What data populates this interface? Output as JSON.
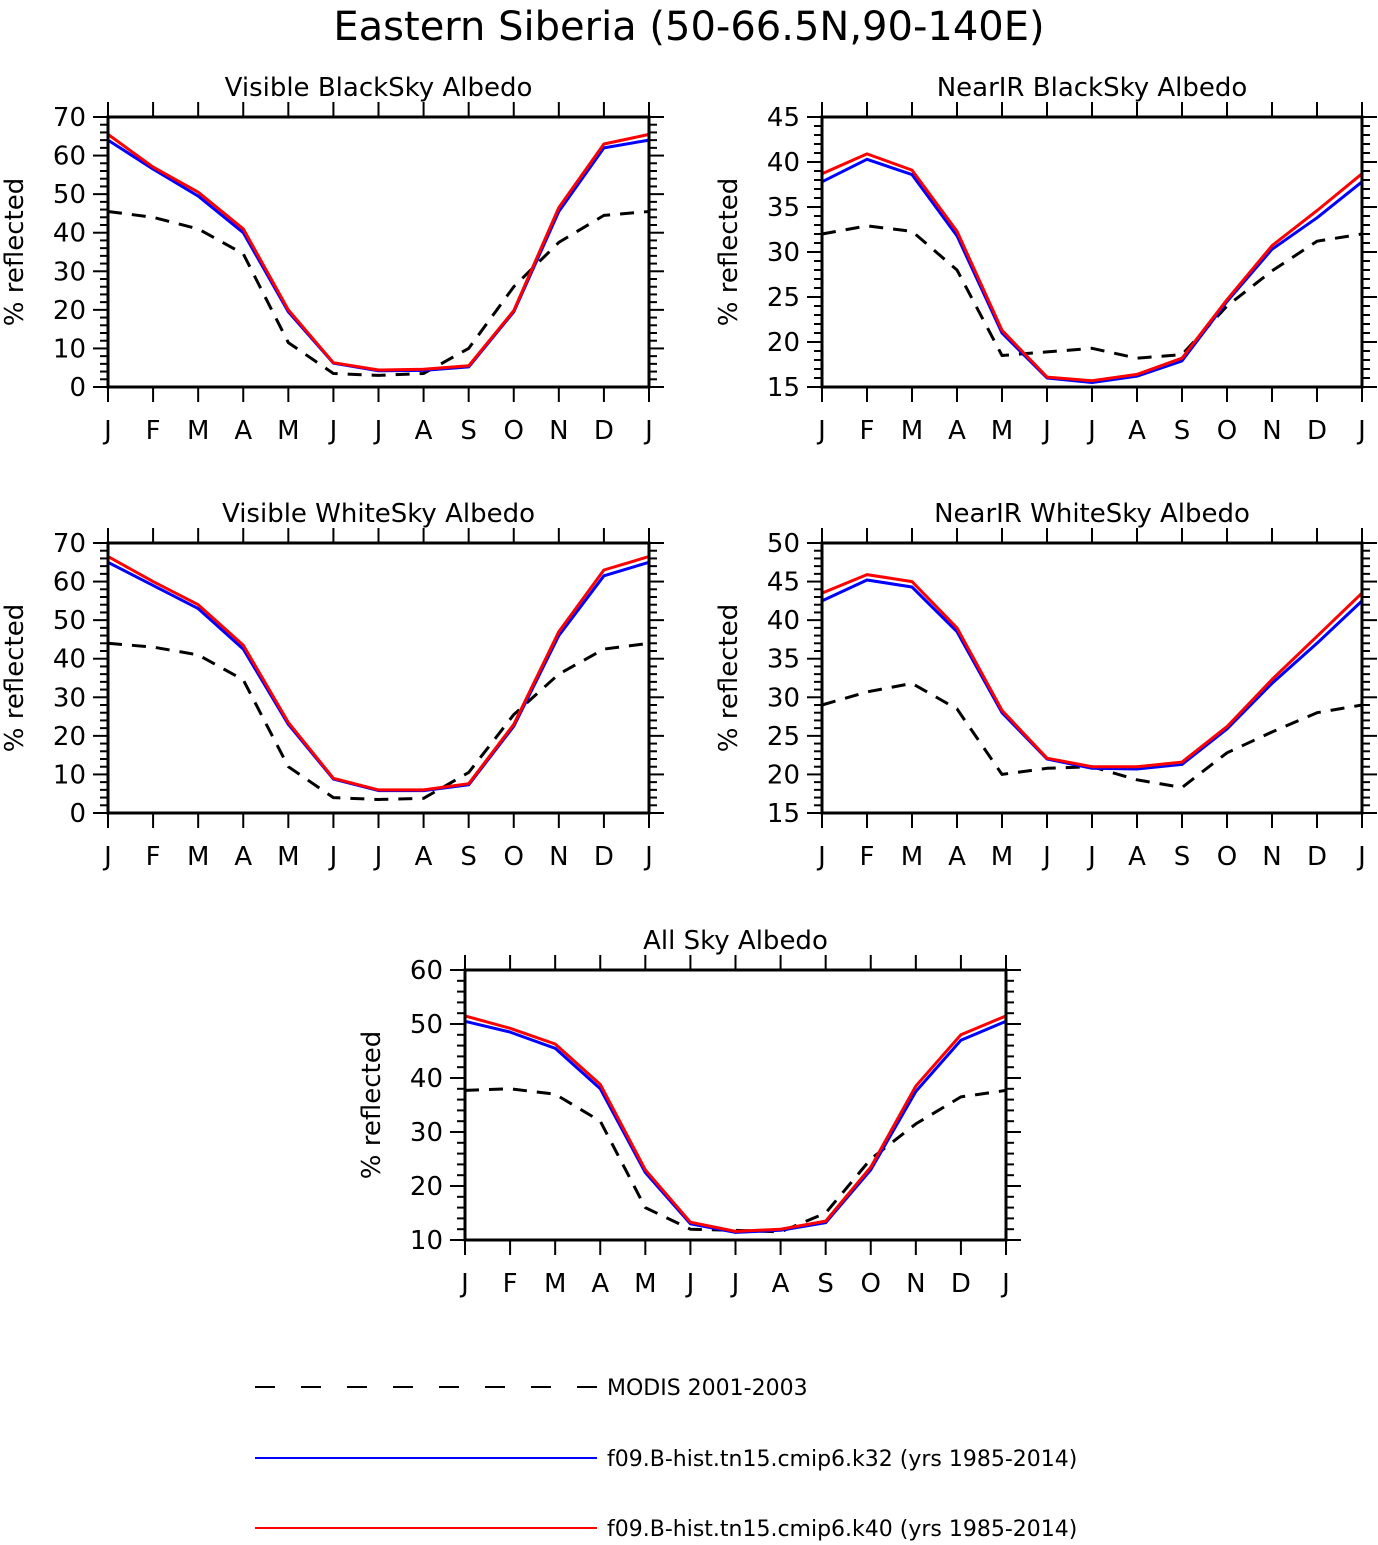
{
  "title": "Eastern Siberia (50-66.5N,90-140E)",
  "colors": {
    "modis": "#000000",
    "k32": "#0000ff",
    "k40": "#ff0000"
  },
  "legend": [
    {
      "key": "modis",
      "label": "MODIS 2001-2003",
      "style": "dashed"
    },
    {
      "key": "k32",
      "label": "f09.B-hist.tn15.cmip6.k32 (yrs 1985-2014)",
      "style": "solid"
    },
    {
      "key": "k40",
      "label": "f09.B-hist.tn15.cmip6.k40 (yrs 1985-2014)",
      "style": "solid"
    }
  ],
  "chart_data": [
    {
      "type": "line",
      "title": "Visible BlackSky Albedo",
      "ylabel": "% reflected",
      "categories": [
        "J",
        "F",
        "M",
        "A",
        "M",
        "J",
        "J",
        "A",
        "S",
        "O",
        "N",
        "D",
        "J"
      ],
      "ylim": [
        0,
        70
      ],
      "yticks": [
        0,
        10,
        20,
        30,
        40,
        50,
        60,
        70
      ],
      "series": [
        {
          "key": "modis",
          "values": [
            45.5,
            44,
            41,
            34.5,
            11.5,
            3.5,
            3,
            3.5,
            10,
            26,
            37.5,
            44.5,
            45.5
          ]
        },
        {
          "key": "k32",
          "values": [
            64,
            56.5,
            49.5,
            40,
            19.5,
            6.2,
            4.2,
            4.3,
            5.2,
            19.5,
            45.5,
            62,
            64
          ]
        },
        {
          "key": "k40",
          "values": [
            65.5,
            57,
            50.5,
            41,
            20,
            6.3,
            4.4,
            4.6,
            5.5,
            19.8,
            46.5,
            63,
            65.5
          ]
        }
      ]
    },
    {
      "type": "line",
      "title": "NearIR BlackSky Albedo",
      "ylabel": "% reflected",
      "categories": [
        "J",
        "F",
        "M",
        "A",
        "M",
        "J",
        "J",
        "A",
        "S",
        "O",
        "N",
        "D",
        "J"
      ],
      "ylim": [
        15,
        45
      ],
      "yticks": [
        15,
        20,
        25,
        30,
        35,
        40,
        45
      ],
      "series": [
        {
          "key": "modis",
          "values": [
            32,
            32.9,
            32.3,
            28,
            18.5,
            18.9,
            19.3,
            18.2,
            18.6,
            24,
            27.9,
            31.2,
            32
          ]
        },
        {
          "key": "k32",
          "values": [
            37.8,
            40.3,
            38.6,
            31.8,
            21,
            16,
            15.5,
            16.2,
            17.9,
            24.5,
            30.3,
            33.8,
            37.8
          ]
        },
        {
          "key": "k40",
          "values": [
            38.7,
            40.9,
            39.1,
            32.3,
            21.3,
            16.1,
            15.7,
            16.4,
            18.2,
            24.7,
            30.7,
            34.6,
            38.7
          ]
        }
      ]
    },
    {
      "type": "line",
      "title": "Visible WhiteSky Albedo",
      "ylabel": "% reflected",
      "categories": [
        "J",
        "F",
        "M",
        "A",
        "M",
        "J",
        "J",
        "A",
        "S",
        "O",
        "N",
        "D",
        "J"
      ],
      "ylim": [
        0,
        70
      ],
      "yticks": [
        0,
        10,
        20,
        30,
        40,
        50,
        60,
        70
      ],
      "series": [
        {
          "key": "modis",
          "values": [
            44,
            43,
            41,
            34.5,
            12,
            4,
            3.5,
            3.8,
            10.5,
            25.5,
            36,
            42.5,
            44
          ]
        },
        {
          "key": "k32",
          "values": [
            65,
            59,
            53,
            42.5,
            23,
            8.8,
            5.8,
            5.8,
            7.3,
            22.5,
            46,
            61.5,
            65
          ]
        },
        {
          "key": "k40",
          "values": [
            66.5,
            60,
            54,
            43.5,
            23.5,
            9,
            6,
            6,
            7.6,
            23,
            47,
            63,
            66.5
          ]
        }
      ]
    },
    {
      "type": "line",
      "title": "NearIR WhiteSky Albedo",
      "ylabel": "% reflected",
      "categories": [
        "J",
        "F",
        "M",
        "A",
        "M",
        "J",
        "J",
        "A",
        "S",
        "O",
        "N",
        "D",
        "J"
      ],
      "ylim": [
        15,
        50
      ],
      "yticks": [
        15,
        20,
        25,
        30,
        35,
        40,
        45,
        50
      ],
      "series": [
        {
          "key": "modis",
          "values": [
            29,
            30.7,
            31.8,
            28.5,
            20,
            20.8,
            21,
            19.3,
            18.3,
            22.8,
            25.5,
            28,
            29
          ]
        },
        {
          "key": "k32",
          "values": [
            42.5,
            45.2,
            44.3,
            38.5,
            28,
            22,
            20.8,
            20.7,
            21.3,
            25.9,
            31.8,
            37,
            42.5
          ]
        },
        {
          "key": "k40",
          "values": [
            43.5,
            45.9,
            45,
            39,
            28.3,
            22.1,
            21,
            21,
            21.6,
            26.2,
            32.3,
            37.9,
            43.5
          ]
        }
      ]
    },
    {
      "type": "line",
      "title": "All Sky Albedo",
      "ylabel": "% reflected",
      "categories": [
        "J",
        "F",
        "M",
        "A",
        "M",
        "J",
        "J",
        "A",
        "S",
        "O",
        "N",
        "D",
        "J"
      ],
      "ylim": [
        10,
        60
      ],
      "yticks": [
        10,
        20,
        30,
        40,
        50,
        60
      ],
      "series": [
        {
          "key": "modis",
          "values": [
            37.7,
            38,
            37,
            32,
            16,
            12,
            11.8,
            11.5,
            15,
            25,
            31.5,
            36.5,
            37.7
          ]
        },
        {
          "key": "k32",
          "values": [
            50.5,
            48.5,
            45.5,
            38,
            22.5,
            13,
            11.4,
            11.8,
            13.2,
            23,
            37.5,
            47,
            50.5
          ]
        },
        {
          "key": "k40",
          "values": [
            51.5,
            49.2,
            46.3,
            38.8,
            23,
            13.3,
            11.6,
            12,
            13.5,
            23.5,
            38.5,
            48,
            51.5
          ]
        }
      ]
    }
  ]
}
